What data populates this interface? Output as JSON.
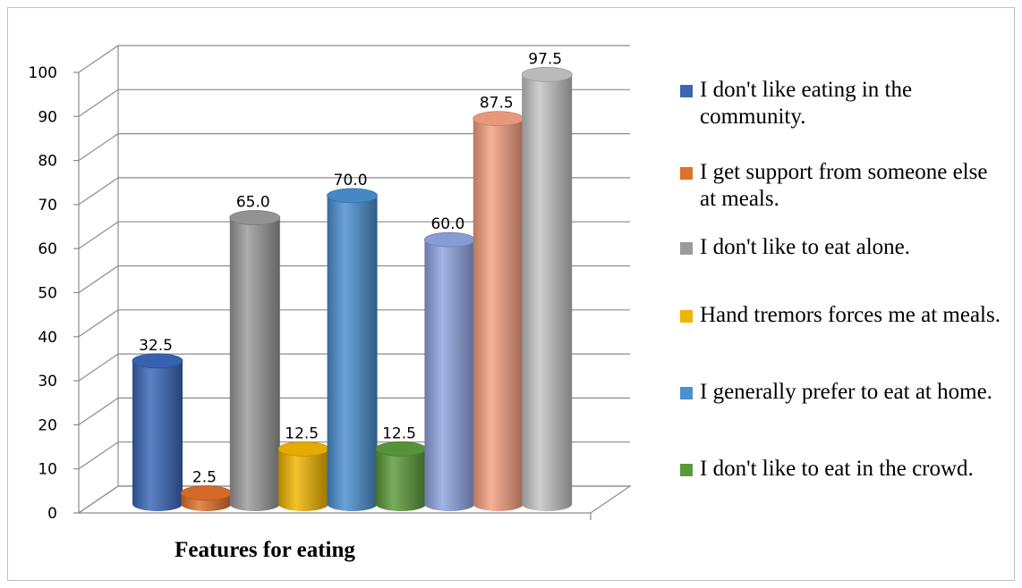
{
  "chart_data": {
    "type": "bar",
    "xlabel": "Features for eating",
    "ylim": [
      0,
      100
    ],
    "yticks": [
      0,
      10,
      20,
      30,
      40,
      50,
      60,
      70,
      80,
      90,
      100
    ],
    "grid": true,
    "legend_position": "right",
    "series": [
      {
        "name": "I don't like eating in the community.",
        "value": 32.5,
        "label": "32.5",
        "color": "#3a66b8"
      },
      {
        "name": "I get support from someone else at meals.",
        "value": 2.5,
        "label": "2.5",
        "color": "#e0702a"
      },
      {
        "name": "I don't like to eat alone.",
        "value": 65.0,
        "label": "65.0",
        "color": "#9a9a9a"
      },
      {
        "name": "Hand tremors  forces me at meals.",
        "value": 12.5,
        "label": "12.5",
        "color": "#f0b400"
      },
      {
        "name": "I generally prefer to eat at home.",
        "value": 70.0,
        "label": "70.0",
        "color": "#4a8fd0"
      },
      {
        "name": "I don't like to eat in the crowd.",
        "value": 12.5,
        "label": "12.5",
        "color": "#5a9a3a"
      },
      {
        "name": "",
        "value": 60.0,
        "label": "60.0",
        "color": "#8ea4e0"
      },
      {
        "name": "",
        "value": 87.5,
        "label": "87.5",
        "color": "#f4a080"
      },
      {
        "name": "",
        "value": 97.5,
        "label": "97.5",
        "color": "#c4c4c4"
      }
    ]
  },
  "legend": [
    {
      "text": "I don't like eating in the community.",
      "color": "#3a66b8"
    },
    {
      "text": "I get support from someone else at meals.",
      "color": "#e0702a"
    },
    {
      "text": "I don't like to eat alone.",
      "color": "#9a9a9a"
    },
    {
      "text": "Hand tremors  forces me at meals.",
      "color": "#f0b400"
    },
    {
      "text": "I generally prefer to eat at home.",
      "color": "#4a8fd0"
    },
    {
      "text": "I don't like to eat in the crowd.",
      "color": "#5a9a3a"
    }
  ]
}
